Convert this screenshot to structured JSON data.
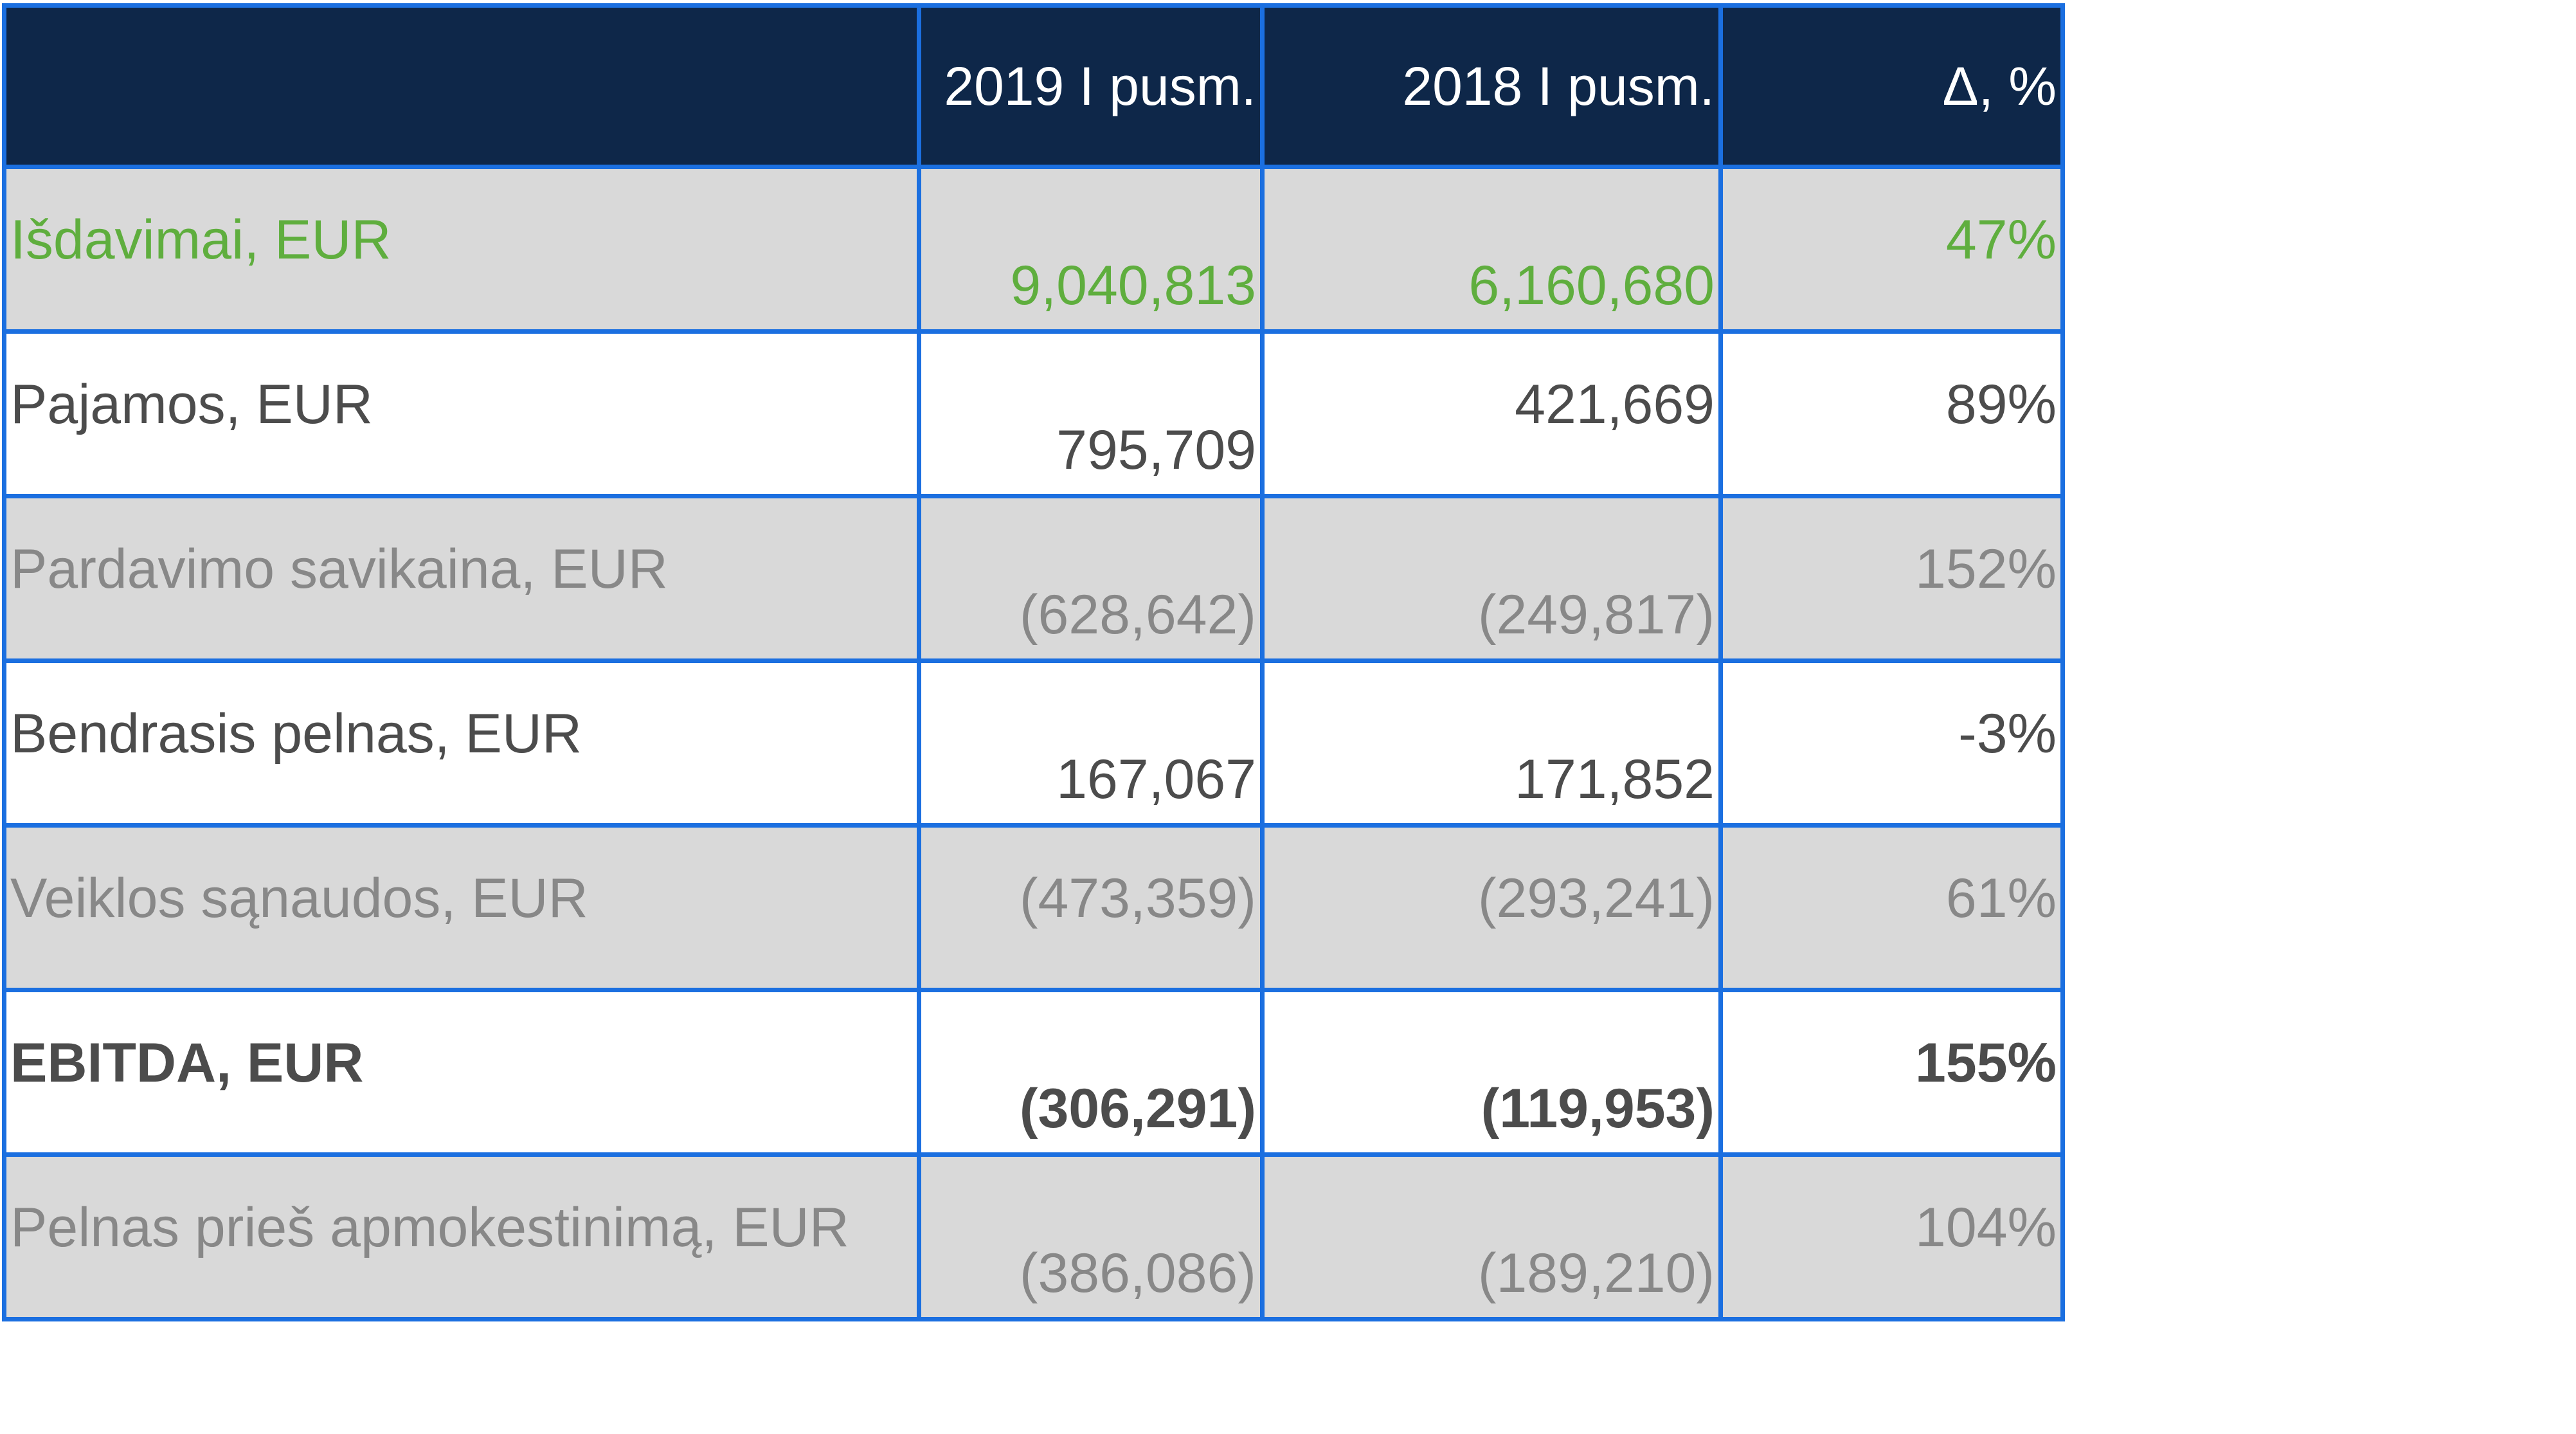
{
  "table": {
    "headers": [
      "",
      "2019 I pusm.",
      "2018 I pusm.",
      "Δ, %"
    ],
    "rows": [
      {
        "label": "Išdavimai, EUR",
        "y2019": "9,040,813",
        "y2018": "6,160,680",
        "delta": "47%"
      },
      {
        "label": "Pajamos, EUR",
        "y2019": "795,709",
        "y2018": "421,669",
        "delta": "89%"
      },
      {
        "label": "Pardavimo savikaina, EUR",
        "y2019": "(628,642)",
        "y2018": "(249,817)",
        "delta": "152%"
      },
      {
        "label": "Bendrasis pelnas, EUR",
        "y2019": "167,067",
        "y2018": "171,852",
        "delta": "-3%"
      },
      {
        "label": "Veiklos sąnaudos, EUR",
        "y2019": "(473,359)",
        "y2018": "(293,241)",
        "delta": "61%"
      },
      {
        "label": "EBITDA, EUR",
        "y2019": "(306,291)",
        "y2018": "(119,953)",
        "delta": "155%"
      },
      {
        "label": "Pelnas prieš apmokestinimą, EUR",
        "y2019": "(386,086)",
        "y2018": "(189,210)",
        "delta": "104%"
      }
    ]
  },
  "colors": {
    "header_bg": "#0e2749",
    "grid_border": "#1b6fe0",
    "row_gray": "#d9d9d9",
    "text_green": "#5fae3e",
    "text_dark": "#4c4c4c",
    "text_light": "#888888"
  }
}
